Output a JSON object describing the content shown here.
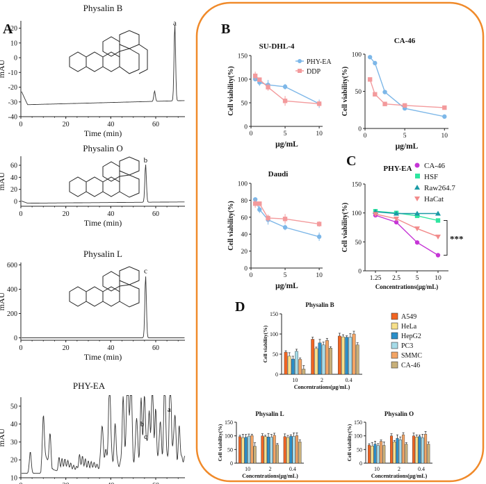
{
  "colors": {
    "frame": "#f08a2a",
    "blue": "#7db7e8",
    "pink": "#f39a9c",
    "magenta": "#c535d6",
    "green": "#2ee6a0",
    "teal": "#1a9aa5",
    "salmon": "#f28b8b",
    "cat": [
      "#f26522",
      "#f7e08a",
      "#2b8fc9",
      "#a6dbe8",
      "#f3a464",
      "#c8b07a"
    ]
  },
  "chart_data": [
    {
      "id": "A1",
      "type": "line",
      "panel_label": "A",
      "title": "Physalin B",
      "ylabel": "mAU",
      "xlabel": "Time  (min)",
      "xticks": [
        "0",
        "20",
        "40",
        "60"
      ],
      "yticks": [
        "-40",
        "-30",
        "-20",
        "-10",
        "0",
        "10",
        "20"
      ],
      "xlim": [
        0,
        73
      ],
      "ylim": [
        -40,
        25
      ],
      "peaks": [
        {
          "label": "a",
          "time": 68.5,
          "height": 20
        },
        {
          "time": 59.5,
          "height": -25
        }
      ],
      "baseline": -32
    },
    {
      "id": "A2",
      "type": "line",
      "title": "Physalin O",
      "ylabel": "mAU",
      "xlabel": "Time  (min)",
      "xticks": [
        "0",
        "20",
        "40",
        "60"
      ],
      "yticks": [
        "0",
        "20",
        "40",
        "60"
      ],
      "xlim": [
        0,
        73
      ],
      "ylim": [
        -8,
        75
      ],
      "peaks": [
        {
          "label": "b",
          "time": 55.5,
          "height": 60
        }
      ],
      "baseline": -3
    },
    {
      "id": "A3",
      "type": "line",
      "title": "Physalin L",
      "ylabel": "mAU",
      "xlabel": "Time  (min)",
      "xticks": [
        "0",
        "20",
        "40",
        "60"
      ],
      "yticks": [
        "0",
        "200",
        "400",
        "600"
      ],
      "xlim": [
        0,
        73
      ],
      "ylim": [
        -20,
        620
      ],
      "peaks": [
        {
          "label": "c",
          "time": 55.5,
          "height": 510
        }
      ],
      "baseline": 0
    },
    {
      "id": "A4",
      "type": "line",
      "title": "PHY-EA",
      "ylabel": "mAU",
      "xlabel": "Time  (min)",
      "xticks": [
        "0",
        "20",
        "40",
        "60"
      ],
      "yticks": [
        "10",
        "20",
        "30",
        "40",
        "50"
      ],
      "xlim": [
        0,
        73
      ],
      "ylim": [
        10,
        55
      ],
      "peak_labels": [
        {
          "label": "a",
          "time": 66
        },
        {
          "label": "b",
          "time": 54
        },
        {
          "label": "c",
          "time": 55.5
        }
      ]
    },
    {
      "id": "B1",
      "type": "line",
      "panel_label": "B",
      "title": "SU-DHL-4",
      "xlabel": "μg/mL",
      "ylabel": "Cell viability(%)",
      "xticks": [
        0,
        5,
        10
      ],
      "yticks": [
        0,
        50,
        100,
        150
      ],
      "xlim": [
        0,
        10.5
      ],
      "ylim": [
        0,
        150
      ],
      "series": [
        {
          "name": "PHY-EA",
          "x": [
            0.625,
            1.25,
            2.5,
            5,
            10
          ],
          "y": [
            100,
            93,
            88,
            84,
            48
          ]
        },
        {
          "name": "DDP",
          "x": [
            0.625,
            1.25,
            2.5,
            5,
            10
          ],
          "y": [
            107,
            99,
            83,
            54,
            48
          ]
        }
      ]
    },
    {
      "id": "B2",
      "type": "line",
      "title": "CA-46",
      "xlabel": "μg/mL",
      "ylabel": "Cell viability(%)",
      "xticks": [
        0,
        5,
        10
      ],
      "yticks": [
        0,
        50,
        100
      ],
      "xlim": [
        0,
        10.5
      ],
      "ylim": [
        0,
        100
      ],
      "series": [
        {
          "name": "PHY-EA",
          "x": [
            0.625,
            1.25,
            2.5,
            5,
            10
          ],
          "y": [
            96,
            88,
            49,
            27,
            16
          ]
        },
        {
          "name": "DDP",
          "x": [
            0.625,
            1.25,
            2.5,
            5,
            10
          ],
          "y": [
            66,
            46,
            33,
            31,
            28
          ]
        }
      ]
    },
    {
      "id": "B3",
      "type": "line",
      "title": "Daudi",
      "xlabel": "μg/mL",
      "ylabel": "Cell viability(%)",
      "xticks": [
        0,
        5,
        10
      ],
      "yticks": [
        0,
        20,
        40,
        60,
        80,
        100
      ],
      "xlim": [
        0,
        10.5
      ],
      "ylim": [
        0,
        100
      ],
      "series": [
        {
          "name": "PHY-EA",
          "x": [
            0.625,
            1.25,
            2.5,
            5,
            10
          ],
          "y": [
            81,
            69,
            57,
            48,
            37
          ]
        },
        {
          "name": "DDP",
          "x": [
            0.625,
            1.25,
            2.5,
            5,
            10
          ],
          "y": [
            76,
            76,
            59,
            58,
            52
          ]
        }
      ]
    },
    {
      "id": "C",
      "type": "line",
      "panel_label": "C",
      "title": "PHY-EA",
      "xlabel": "Concentrations(μg/mL)",
      "ylabel": "Cell viability(%)",
      "categories": [
        "1.25",
        "2.5",
        "5",
        "10"
      ],
      "yticks": [
        0,
        50,
        100,
        150
      ],
      "ylim": [
        0,
        150
      ],
      "annotation": "***",
      "series": [
        {
          "name": "CA-46",
          "y": [
            96,
            84,
            49,
            27
          ]
        },
        {
          "name": "HSF",
          "y": [
            103,
            100,
            95,
            87
          ]
        },
        {
          "name": "Raw264.7",
          "y": [
            102,
            99,
            99,
            99
          ]
        },
        {
          "name": "HaCat",
          "y": [
            98,
            90,
            73,
            59
          ]
        }
      ]
    },
    {
      "id": "D1",
      "type": "bar",
      "panel_label": "D",
      "title": "Physalin B",
      "xlabel": "Concentrations(μg/mL)",
      "ylabel": "Cell viability(%)",
      "categories": [
        "10",
        "2",
        "0.4"
      ],
      "yticks": [
        0,
        50,
        100,
        150
      ],
      "ylim": [
        0,
        150
      ],
      "series": [
        {
          "name": "A549",
          "values": [
            55,
            87,
            95
          ]
        },
        {
          "name": "HeLa",
          "values": [
            45,
            64,
            93
          ]
        },
        {
          "name": "HepG2",
          "values": [
            38,
            78,
            92
          ]
        },
        {
          "name": "PC3",
          "values": [
            57,
            73,
            92
          ]
        },
        {
          "name": "SMMC",
          "values": [
            37,
            84,
            100
          ]
        },
        {
          "name": "CA-46",
          "values": [
            13,
            65,
            73
          ]
        }
      ]
    },
    {
      "id": "D2",
      "type": "bar",
      "title": "Physalin L",
      "xlabel": "Concentrations(μg/mL)",
      "ylabel": "Cell viability(%)",
      "categories": [
        "10",
        "2",
        "0.4"
      ],
      "yticks": [
        0,
        50,
        100,
        150
      ],
      "ylim": [
        0,
        150
      ],
      "series": [
        {
          "name": "A549",
          "values": [
            97,
            100,
            97
          ]
        },
        {
          "name": "HeLa",
          "values": [
            93,
            97,
            94
          ]
        },
        {
          "name": "HepG2",
          "values": [
            95,
            96,
            99
          ]
        },
        {
          "name": "PC3",
          "values": [
            99,
            95,
            98
          ]
        },
        {
          "name": "SMMC",
          "values": [
            101,
            102,
            101
          ]
        },
        {
          "name": "CA-46",
          "values": [
            62,
            67,
            78
          ]
        }
      ]
    },
    {
      "id": "D3",
      "type": "bar",
      "title": "Physalin O",
      "xlabel": "Concentrations(μg/mL)",
      "ylabel": "Cell viability(%)",
      "categories": [
        "10",
        "2",
        "0.4"
      ],
      "yticks": [
        0,
        50,
        100,
        150
      ],
      "ylim": [
        0,
        150
      ],
      "series": [
        {
          "name": "A549",
          "values": [
            66,
            100,
            100
          ]
        },
        {
          "name": "HeLa",
          "values": [
            63,
            78,
            96
          ]
        },
        {
          "name": "HepG2",
          "values": [
            70,
            91,
            98
          ]
        },
        {
          "name": "PC3",
          "values": [
            64,
            86,
            93
          ]
        },
        {
          "name": "SMMC",
          "values": [
            80,
            104,
            106
          ]
        },
        {
          "name": "CA-46",
          "values": [
            65,
            70,
            70
          ]
        }
      ]
    }
  ]
}
